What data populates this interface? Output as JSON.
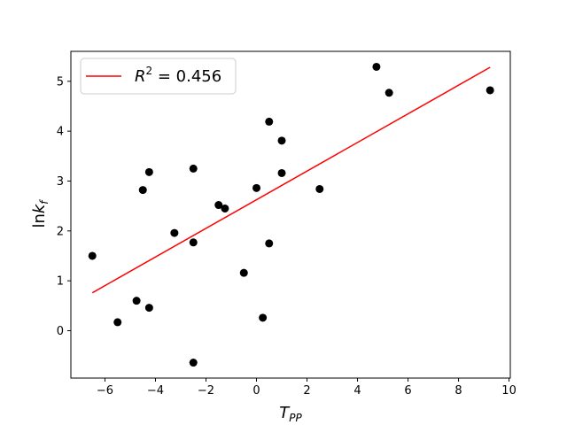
{
  "chart_data": {
    "type": "scatter",
    "xlabel": {
      "base": "T",
      "sub": "PP"
    },
    "ylabel": {
      "base": "ln",
      "var": "k",
      "sub": "f"
    },
    "xlim": [
      -7.35,
      10.05
    ],
    "ylim": [
      -0.95,
      5.6
    ],
    "xticks": [
      -6,
      -4,
      -2,
      0,
      2,
      4,
      6,
      8,
      10
    ],
    "yticks": [
      0,
      1,
      2,
      3,
      4,
      5
    ],
    "xtick_labels": [
      "−6",
      "−4",
      "−2",
      "0",
      "2",
      "4",
      "6",
      "8",
      "10"
    ],
    "ytick_labels": [
      "0",
      "1",
      "2",
      "3",
      "4",
      "5"
    ],
    "grid": false,
    "legend_position": "upper-left",
    "series": [
      {
        "kind": "points",
        "color": "#000000",
        "points": [
          [
            -6.5,
            1.5
          ],
          [
            -5.5,
            0.17
          ],
          [
            -4.75,
            0.6
          ],
          [
            -4.5,
            2.82
          ],
          [
            -4.25,
            3.18
          ],
          [
            -4.25,
            0.46
          ],
          [
            -3.25,
            1.96
          ],
          [
            -2.5,
            3.25
          ],
          [
            -2.5,
            1.77
          ],
          [
            -2.5,
            -0.64
          ],
          [
            -1.5,
            2.52
          ],
          [
            -1.25,
            2.45
          ],
          [
            -0.5,
            1.16
          ],
          [
            0.0,
            2.86
          ],
          [
            0.25,
            0.26
          ],
          [
            0.5,
            4.19
          ],
          [
            0.5,
            1.75
          ],
          [
            1.0,
            3.81
          ],
          [
            1.0,
            3.16
          ],
          [
            2.5,
            2.84
          ],
          [
            4.75,
            5.29
          ],
          [
            5.25,
            4.77
          ],
          [
            9.25,
            4.82
          ]
        ]
      },
      {
        "kind": "fit_line",
        "color": "#ff0000",
        "name": {
          "var": "R",
          "sup": "2",
          "rest": " = 0.456"
        },
        "x": [
          -6.5,
          9.25
        ],
        "y": [
          0.76,
          5.28
        ]
      }
    ]
  }
}
